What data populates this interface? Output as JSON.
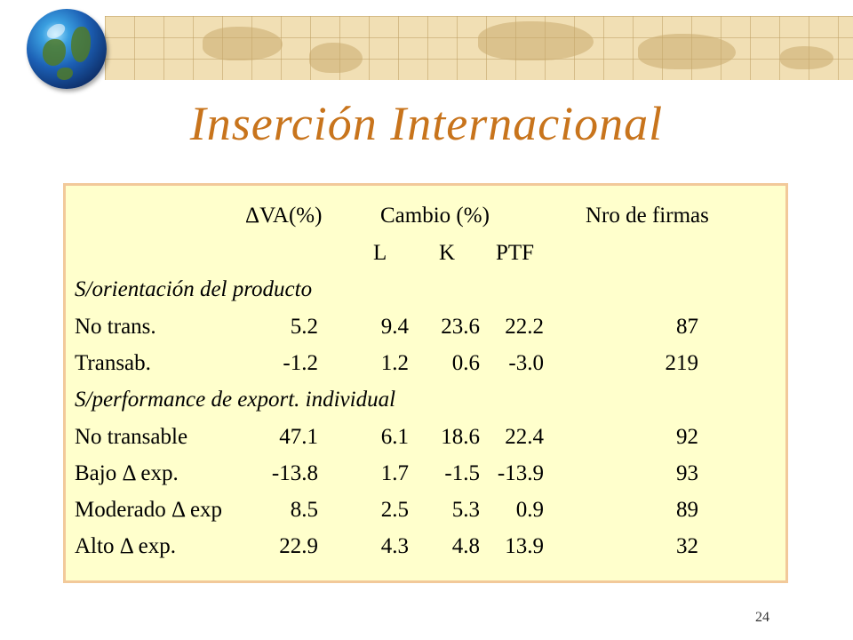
{
  "slide": {
    "title": "Inserción Internacional",
    "page_number": "24"
  },
  "table": {
    "header1": {
      "va": "ΔVA(%)",
      "cambio": "Cambio (%)",
      "firmas": "Nro de firmas"
    },
    "header2": {
      "l": "L",
      "k": "K",
      "ptf": "PTF"
    },
    "section1": "S/orientación del producto",
    "section2": "S/performance de export. individual",
    "rows1": [
      {
        "label": "No trans.",
        "va": "5.2",
        "l": "9.4",
        "k": "23.6",
        "ptf": "22.2",
        "firmas": "87"
      },
      {
        "label": "Transab.",
        "va": "-1.2",
        "l": "1.2",
        "k": "0.6",
        "ptf": "-3.0",
        "firmas": "219"
      }
    ],
    "rows2": [
      {
        "label": "No transable",
        "va": "47.1",
        "l": "6.1",
        "k": "18.6",
        "ptf": "22.4",
        "firmas": "92"
      },
      {
        "label": "Bajo Δ exp.",
        "va": "-13.8",
        "l": "1.7",
        "k": "-1.5",
        "ptf": "-13.9",
        "firmas": "93"
      },
      {
        "label": "Moderado Δ exp",
        "va": "8.5",
        "l": "2.5",
        "k": "5.3",
        "ptf": "0.9",
        "firmas": "89"
      },
      {
        "label": "Alto Δ exp.",
        "va": "22.9",
        "l": "4.3",
        "k": "4.8",
        "ptf": "13.9",
        "firmas": "32"
      }
    ]
  },
  "colors": {
    "title": "#c8741c",
    "panel_bg": "#ffffcc",
    "panel_border": "#f2c99a",
    "banner": "#f1dfb4"
  }
}
